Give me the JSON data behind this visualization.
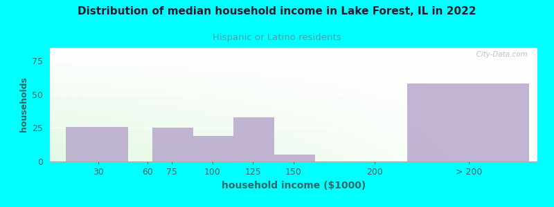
{
  "title": "Distribution of median household income in Lake Forest, IL in 2022",
  "subtitle": "Hispanic or Latino residents",
  "xlabel": "household income ($1000)",
  "ylabel": "households",
  "background_outer": "#00FFFF",
  "bar_color": "#B8A8CC",
  "bar_alpha": 0.85,
  "title_color": "#1a1a2e",
  "subtitle_color": "#5599aa",
  "axis_label_color": "#336666",
  "tick_label_color": "#336666",
  "watermark": "  City-Data.com",
  "bars": [
    {
      "x_left": 10,
      "x_right": 48,
      "height": 26
    },
    {
      "x_left": 63,
      "x_right": 88,
      "height": 25
    },
    {
      "x_left": 88,
      "x_right": 113,
      "height": 19
    },
    {
      "x_left": 113,
      "x_right": 138,
      "height": 33
    },
    {
      "x_left": 138,
      "x_right": 163,
      "height": 5
    },
    {
      "x_left": 220,
      "x_right": 295,
      "height": 58
    }
  ],
  "xtick_positions": [
    30,
    60,
    75,
    100,
    125,
    150,
    200,
    258
  ],
  "xtick_labels": [
    "30",
    "60",
    "75",
    "100",
    "125",
    "150",
    "200",
    "> 200"
  ],
  "ylim": [
    0,
    85
  ],
  "yticks": [
    0,
    25,
    50,
    75
  ],
  "xlim": [
    0,
    300
  ]
}
